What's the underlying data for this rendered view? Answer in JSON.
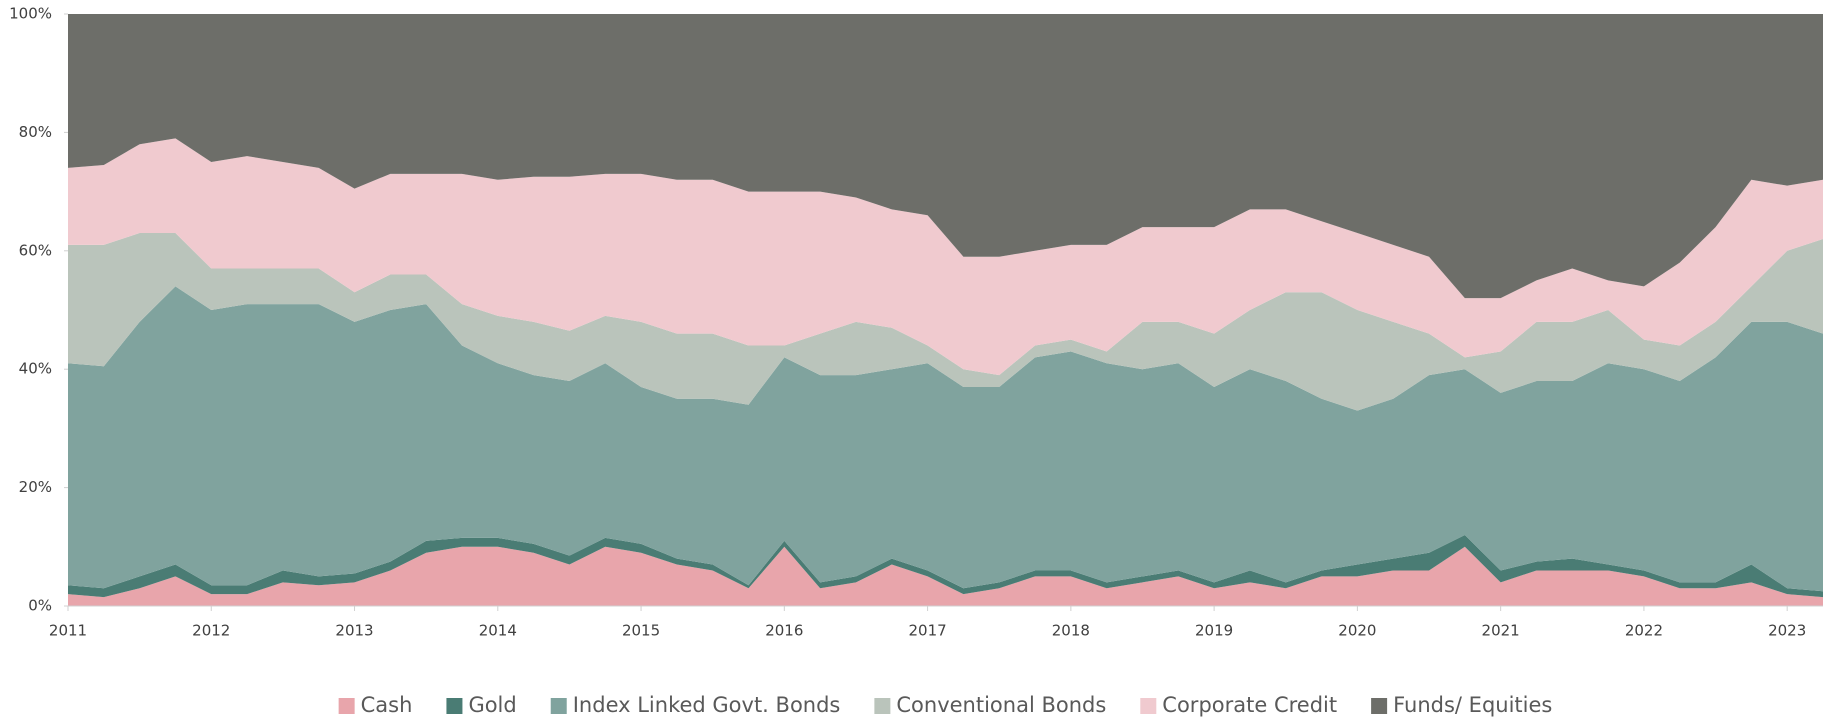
{
  "chart_data": {
    "type": "stacked_area",
    "x": [
      2011,
      2011.25,
      2011.5,
      2011.75,
      2012,
      2012.25,
      2012.5,
      2012.75,
      2013,
      2013.25,
      2013.5,
      2013.75,
      2014,
      2014.25,
      2014.5,
      2014.75,
      2015,
      2015.25,
      2015.5,
      2015.75,
      2016,
      2016.25,
      2016.5,
      2016.75,
      2017,
      2017.25,
      2017.5,
      2017.75,
      2018,
      2018.25,
      2018.5,
      2018.75,
      2019,
      2019.25,
      2019.5,
      2019.75,
      2020,
      2020.25,
      2020.5,
      2020.75,
      2021,
      2021.25,
      2021.5,
      2021.75,
      2022,
      2022.25,
      2022.5,
      2022.75,
      2023,
      2023.25
    ],
    "series": [
      {
        "name": "Cash",
        "color": "#e8a5ab",
        "values": [
          2,
          1.5,
          3,
          5,
          2,
          2,
          4,
          3.5,
          4,
          6,
          9,
          10,
          10,
          9,
          7,
          10,
          9,
          7,
          6,
          3,
          10,
          3,
          4,
          7,
          5,
          2,
          3,
          5,
          5,
          3,
          4,
          5,
          3,
          4,
          3,
          5,
          5,
          6,
          6,
          10,
          4,
          6,
          6,
          6,
          5,
          3,
          3,
          4,
          2,
          1.5
        ]
      },
      {
        "name": "Gold",
        "color": "#4a7c74",
        "values": [
          1.5,
          1.5,
          2,
          2,
          1.5,
          1.5,
          2,
          1.5,
          1.5,
          1.5,
          2,
          1.5,
          1.5,
          1.5,
          1.5,
          1.5,
          1.5,
          1,
          1,
          0.5,
          1,
          1,
          1,
          1,
          1,
          1,
          1,
          1,
          1,
          1,
          1,
          1,
          1,
          2,
          1,
          1,
          2,
          2,
          3,
          2,
          2,
          1.5,
          2,
          1,
          1,
          1,
          1,
          3,
          1,
          1
        ]
      },
      {
        "name": "Index Linked Govt. Bonds",
        "color": "#80a39e",
        "values": [
          37.5,
          37.5,
          43,
          47,
          46.5,
          47.5,
          45,
          46,
          42.5,
          42.5,
          40,
          32.5,
          29.5,
          28.5,
          29.5,
          29.5,
          26.5,
          27,
          28,
          30.5,
          31,
          35,
          34,
          32,
          35,
          34,
          33,
          36,
          37,
          37,
          35,
          35,
          33,
          34,
          34,
          29,
          26,
          27,
          30,
          28,
          30,
          30.5,
          30,
          34,
          34,
          34,
          38,
          41,
          45,
          43.5
        ]
      },
      {
        "name": "Conventional Bonds",
        "color": "#bac4bb",
        "values": [
          20,
          20.5,
          15,
          9,
          7,
          6,
          6,
          6,
          5,
          6,
          5,
          7,
          8,
          9,
          8.5,
          8,
          11,
          11,
          11,
          10,
          2,
          7,
          9,
          7,
          3,
          3,
          2,
          2,
          2,
          2,
          8,
          7,
          9,
          10,
          15,
          18,
          17,
          13,
          7,
          2,
          7,
          10,
          10,
          9,
          5,
          6,
          6,
          6,
          12,
          16
        ]
      },
      {
        "name": "Corporate Credit",
        "color": "#f0cacf",
        "values": [
          13,
          13.5,
          15,
          16,
          18,
          19,
          18,
          17,
          17.5,
          17,
          17,
          22,
          23,
          24.5,
          26,
          24,
          25,
          26,
          26,
          26,
          26,
          24,
          21,
          20,
          22,
          19,
          20,
          16,
          16,
          18,
          16,
          16,
          18,
          17,
          14,
          12,
          13,
          13,
          13,
          10,
          9,
          7,
          9,
          5,
          9,
          14,
          16,
          18,
          11,
          10
        ]
      },
      {
        "name": "Funds/ Equities",
        "color": "#6d6e69",
        "values": [
          26,
          25.5,
          22,
          21,
          25,
          24,
          25,
          26,
          29.5,
          27,
          27,
          27,
          28,
          27.5,
          27.5,
          27,
          27,
          28,
          28,
          30,
          30,
          30,
          31,
          33,
          34,
          41,
          41,
          40,
          39,
          39,
          36,
          36,
          36,
          33,
          33,
          35,
          37,
          39,
          41,
          48,
          48,
          45,
          43,
          45,
          46,
          42,
          36,
          28,
          29,
          28
        ]
      }
    ],
    "xlim": [
      2011,
      2023.25
    ],
    "xticks": [
      2011,
      2012,
      2013,
      2014,
      2015,
      2016,
      2017,
      2018,
      2019,
      2020,
      2021,
      2022,
      2023
    ],
    "ylim": [
      0,
      100
    ],
    "yticks": [
      {
        "value": 0,
        "label": "0%"
      },
      {
        "value": 20,
        "label": "20%"
      },
      {
        "value": 40,
        "label": "40%"
      },
      {
        "value": 60,
        "label": "60%"
      },
      {
        "value": 80,
        "label": "80%"
      },
      {
        "value": 100,
        "label": "100%"
      }
    ],
    "legend": "bottom"
  }
}
